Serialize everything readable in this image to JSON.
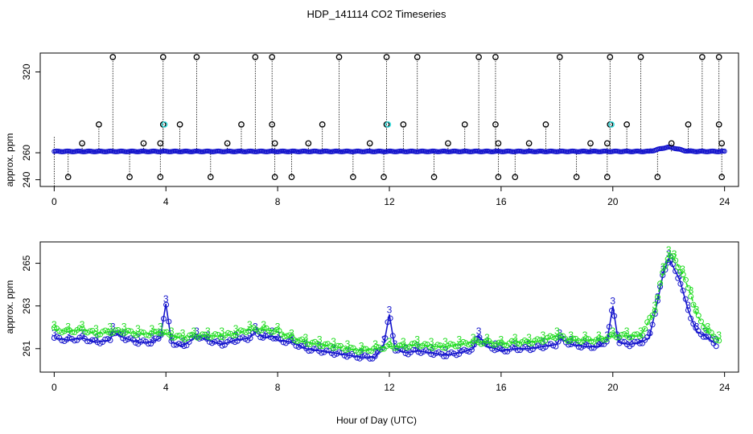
{
  "chart_data": [
    {
      "type": "scatter",
      "panel": "top",
      "title": "HDP_141114  CO2 Timeseries",
      "xlabel": "",
      "ylabel": "approx. ppm",
      "xlim": [
        -0.5,
        24.5
      ],
      "ylim": [
        235,
        334
      ],
      "x_ticks": [
        0,
        4,
        8,
        12,
        16,
        20,
        24
      ],
      "y_ticks": [
        240,
        260,
        320
      ],
      "baseline": 261,
      "outlier_points": [
        {
          "x": 0.5,
          "y": 242
        },
        {
          "x": 1.0,
          "y": 267
        },
        {
          "x": 1.6,
          "y": 281
        },
        {
          "x": 2.1,
          "y": 331
        },
        {
          "x": 2.7,
          "y": 242
        },
        {
          "x": 3.2,
          "y": 267
        },
        {
          "x": 3.8,
          "y": 242
        },
        {
          "x": 3.8,
          "y": 267
        },
        {
          "x": 3.9,
          "y": 281
        },
        {
          "x": 3.9,
          "y": 331
        },
        {
          "x": 4.5,
          "y": 281
        },
        {
          "x": 5.1,
          "y": 331
        },
        {
          "x": 5.6,
          "y": 242
        },
        {
          "x": 6.2,
          "y": 267
        },
        {
          "x": 6.7,
          "y": 281
        },
        {
          "x": 7.2,
          "y": 331
        },
        {
          "x": 7.8,
          "y": 331
        },
        {
          "x": 7.8,
          "y": 281
        },
        {
          "x": 7.9,
          "y": 267
        },
        {
          "x": 7.9,
          "y": 242
        },
        {
          "x": 8.5,
          "y": 242
        },
        {
          "x": 9.1,
          "y": 267
        },
        {
          "x": 9.6,
          "y": 281
        },
        {
          "x": 10.2,
          "y": 331
        },
        {
          "x": 10.7,
          "y": 242
        },
        {
          "x": 11.3,
          "y": 267
        },
        {
          "x": 11.8,
          "y": 242
        },
        {
          "x": 11.9,
          "y": 331
        },
        {
          "x": 11.9,
          "y": 281
        },
        {
          "x": 12.5,
          "y": 281
        },
        {
          "x": 13.0,
          "y": 331
        },
        {
          "x": 13.6,
          "y": 242
        },
        {
          "x": 14.1,
          "y": 267
        },
        {
          "x": 14.7,
          "y": 281
        },
        {
          "x": 15.2,
          "y": 331
        },
        {
          "x": 15.8,
          "y": 331
        },
        {
          "x": 15.8,
          "y": 281
        },
        {
          "x": 15.9,
          "y": 267
        },
        {
          "x": 15.9,
          "y": 242
        },
        {
          "x": 16.5,
          "y": 242
        },
        {
          "x": 17.0,
          "y": 267
        },
        {
          "x": 17.6,
          "y": 281
        },
        {
          "x": 18.1,
          "y": 331
        },
        {
          "x": 18.7,
          "y": 242
        },
        {
          "x": 19.2,
          "y": 267
        },
        {
          "x": 19.8,
          "y": 242
        },
        {
          "x": 19.8,
          "y": 267
        },
        {
          "x": 19.9,
          "y": 281
        },
        {
          "x": 19.9,
          "y": 331
        },
        {
          "x": 20.5,
          "y": 281
        },
        {
          "x": 21.0,
          "y": 331
        },
        {
          "x": 21.6,
          "y": 242
        },
        {
          "x": 22.1,
          "y": 267
        },
        {
          "x": 22.7,
          "y": 281
        },
        {
          "x": 23.2,
          "y": 331
        },
        {
          "x": 23.8,
          "y": 331
        },
        {
          "x": 23.8,
          "y": 281
        },
        {
          "x": 23.9,
          "y": 267
        },
        {
          "x": 23.9,
          "y": 242
        }
      ],
      "cyan_points": [
        {
          "x": 3.95,
          "y": 281
        },
        {
          "x": 11.95,
          "y": 281
        },
        {
          "x": 19.95,
          "y": 281
        }
      ],
      "colors": {
        "outlier": "#000000",
        "series": "#1515cc",
        "cyan": "#30e0e0",
        "stem": "#000000"
      }
    },
    {
      "type": "line",
      "panel": "bottom",
      "title": "",
      "xlabel": "Hour of Day (UTC)",
      "ylabel": "approx. ppm",
      "xlim": [
        -0.5,
        24.5
      ],
      "ylim": [
        259.9,
        266.0
      ],
      "x_ticks": [
        0,
        4,
        8,
        12,
        16,
        20,
        24
      ],
      "y_ticks": [
        261,
        263,
        265
      ],
      "point_marker": "3",
      "series": [
        {
          "name": "blue",
          "color": "#1515cc",
          "x": [
            0.0,
            0.5,
            1.0,
            1.5,
            2.0,
            2.1,
            2.5,
            3.0,
            3.5,
            3.8,
            4.0,
            4.2,
            4.6,
            5.1,
            5.5,
            6.0,
            6.5,
            7.0,
            7.2,
            7.5,
            7.8,
            8.0,
            8.5,
            9.0,
            9.5,
            10.0,
            10.5,
            11.0,
            11.5,
            11.8,
            12.0,
            12.2,
            12.6,
            13.0,
            13.5,
            14.0,
            14.5,
            15.0,
            15.2,
            15.5,
            15.8,
            16.0,
            16.5,
            17.0,
            17.5,
            18.0,
            18.1,
            18.5,
            19.0,
            19.5,
            19.8,
            20.0,
            20.2,
            20.6,
            21.0,
            21.3,
            21.6,
            21.8,
            22.0,
            22.1,
            22.4,
            22.7,
            23.0,
            23.3,
            23.7
          ],
          "y": [
            261.5,
            261.4,
            261.5,
            261.3,
            261.4,
            261.8,
            261.5,
            261.3,
            261.3,
            261.5,
            263.1,
            261.3,
            261.1,
            261.6,
            261.4,
            261.2,
            261.4,
            261.5,
            261.8,
            261.5,
            261.6,
            261.4,
            261.3,
            261.0,
            260.9,
            260.8,
            260.7,
            260.6,
            260.6,
            261.2,
            262.6,
            261.0,
            260.8,
            260.9,
            260.8,
            260.7,
            260.8,
            261.0,
            261.6,
            261.1,
            261.0,
            260.9,
            261.0,
            261.0,
            261.1,
            261.2,
            261.5,
            261.2,
            261.1,
            261.1,
            261.4,
            263.0,
            261.3,
            261.2,
            261.3,
            261.5,
            263.2,
            264.5,
            265.2,
            265.0,
            264.2,
            262.8,
            261.8,
            261.6,
            261.2
          ]
        },
        {
          "name": "green",
          "color": "#22dd22",
          "x": [
            0.0,
            0.5,
            1.0,
            1.5,
            2.0,
            2.5,
            3.0,
            3.5,
            3.8,
            4.2,
            4.6,
            5.0,
            5.5,
            6.0,
            6.5,
            7.0,
            7.5,
            8.0,
            8.5,
            9.0,
            9.5,
            10.0,
            10.5,
            11.0,
            11.5,
            12.0,
            12.5,
            13.0,
            13.5,
            14.0,
            14.5,
            15.0,
            15.5,
            16.0,
            16.5,
            17.0,
            17.5,
            18.0,
            18.5,
            19.0,
            19.5,
            20.0,
            20.5,
            21.0,
            21.5,
            21.8,
            22.0,
            22.2,
            22.5,
            22.8,
            23.0,
            23.4,
            23.8
          ],
          "y": [
            261.9,
            261.8,
            261.9,
            261.7,
            261.8,
            261.8,
            261.7,
            261.7,
            261.8,
            261.6,
            261.5,
            261.6,
            261.6,
            261.6,
            261.7,
            261.9,
            261.9,
            261.8,
            261.5,
            261.3,
            261.2,
            261.1,
            261.0,
            260.9,
            261.0,
            261.1,
            261.1,
            261.2,
            261.1,
            261.1,
            261.2,
            261.3,
            261.3,
            261.2,
            261.3,
            261.3,
            261.4,
            261.6,
            261.4,
            261.4,
            261.4,
            261.6,
            261.6,
            261.6,
            262.8,
            264.6,
            265.4,
            265.2,
            264.5,
            263.5,
            262.6,
            261.8,
            261.4
          ]
        }
      ]
    }
  ]
}
